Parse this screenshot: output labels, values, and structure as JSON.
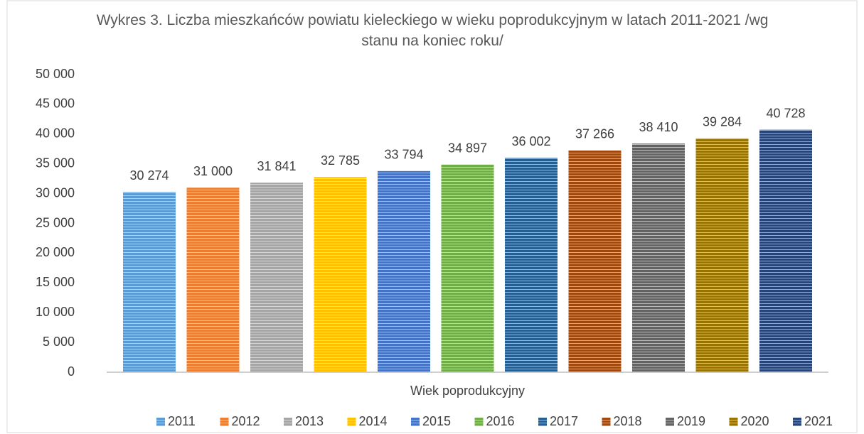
{
  "chart_data": {
    "type": "bar",
    "title": "Wykres 3. Liczba mieszkańców powiatu kieleckiego w wieku poprodukcyjnym w latach 2011-2021 /wg stanu na koniec roku/",
    "categories": [
      "Wiek poprodukcyjny"
    ],
    "series": [
      {
        "name": "2011",
        "color": "#5b9bd5",
        "values": [
          30274
        ],
        "value_labels": [
          "30 274"
        ]
      },
      {
        "name": "2012",
        "color": "#ed7d31",
        "values": [
          31000
        ],
        "value_labels": [
          "31 000"
        ]
      },
      {
        "name": "2013",
        "color": "#a5a5a5",
        "values": [
          31841
        ],
        "value_labels": [
          "31 841"
        ]
      },
      {
        "name": "2014",
        "color": "#ffc000",
        "values": [
          32785
        ],
        "value_labels": [
          "32 785"
        ]
      },
      {
        "name": "2015",
        "color": "#4472c4",
        "values": [
          33794
        ],
        "value_labels": [
          "33 794"
        ]
      },
      {
        "name": "2016",
        "color": "#70ad47",
        "values": [
          34897
        ],
        "value_labels": [
          "34 897"
        ]
      },
      {
        "name": "2017",
        "color": "#255e91",
        "values": [
          36002
        ],
        "value_labels": [
          "36 002"
        ]
      },
      {
        "name": "2018",
        "color": "#9e480e",
        "values": [
          37266
        ],
        "value_labels": [
          "37 266"
        ]
      },
      {
        "name": "2019",
        "color": "#636363",
        "values": [
          38410
        ],
        "value_labels": [
          "38 410"
        ]
      },
      {
        "name": "2020",
        "color": "#997300",
        "values": [
          39284
        ],
        "value_labels": [
          "39 284"
        ]
      },
      {
        "name": "2021",
        "color": "#264478",
        "values": [
          40728
        ],
        "value_labels": [
          "40 728"
        ]
      }
    ],
    "ylim": [
      0,
      50000
    ],
    "yticks": [
      0,
      {
        "value": 5000,
        "label": "5 000"
      },
      {
        "value": 10000,
        "label": "10 000"
      },
      {
        "value": 15000,
        "label": "15 000"
      },
      {
        "value": 20000,
        "label": "20 000"
      },
      {
        "value": 25000,
        "label": "25 000"
      },
      {
        "value": 30000,
        "label": "30 000"
      },
      {
        "value": 35000,
        "label": "35 000"
      },
      {
        "value": 40000,
        "label": "40 000"
      },
      {
        "value": 45000,
        "label": "45 000"
      },
      {
        "value": 50000,
        "label": "50 000"
      }
    ],
    "grid": false,
    "legend": "bottom"
  }
}
